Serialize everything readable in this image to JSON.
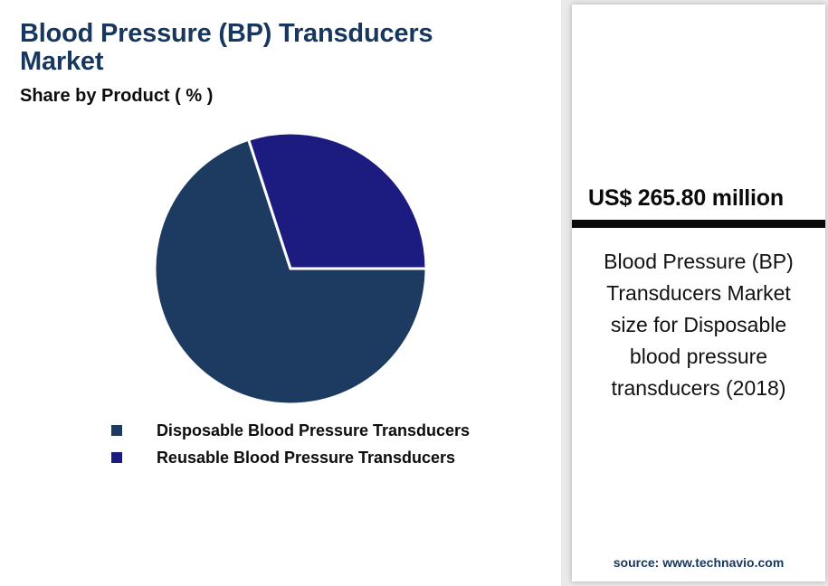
{
  "header": {
    "title": "Blood Pressure (BP) Transducers Market",
    "subtitle": "Share by Product ( % )"
  },
  "chart_data": {
    "type": "pie",
    "title": "Share by Product ( % )",
    "units": "%",
    "series": [
      {
        "name": "Disposable Blood Pressure Transducers",
        "value": 70,
        "color": "#1d3a61"
      },
      {
        "name": "Reusable Blood Pressure Transducers",
        "value": 30,
        "color": "#1c1c80"
      }
    ],
    "start_angle_deg": 0,
    "clockwise": true,
    "slice_border_color": "#ffffff",
    "legend_position": "bottom"
  },
  "panel": {
    "market_size": "US$ 265.80 million",
    "description": "Blood Pressure (BP) Transducers Market size for Disposable blood pressure transducers (2018)",
    "source": "source: www.technavio.com"
  },
  "colors": {
    "title_text": "#17375e",
    "panel_background": "#e9e9e9",
    "divider_bar": "#0a0a0a",
    "source_text": "#17375e"
  }
}
